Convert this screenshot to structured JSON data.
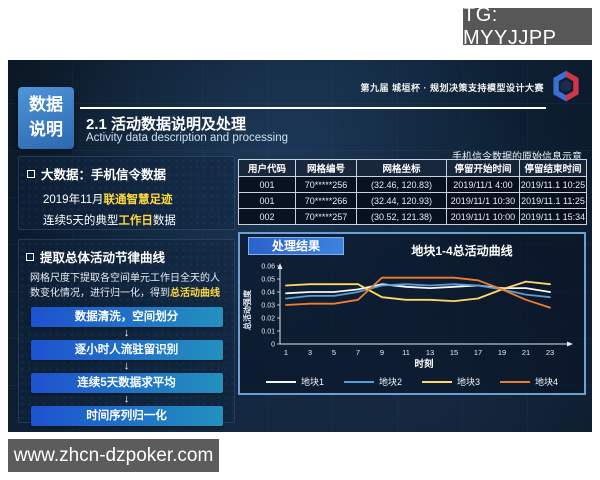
{
  "overlays": {
    "tg_badge": "TG: MYYJJPP",
    "site_badge": "www.zhcn-dzpoker.com"
  },
  "header": {
    "sidebar_label_line1": "数据",
    "sidebar_label_line2": "说明",
    "competition": "第九届 城垣杯 · 规划决策支持模型设计大赛",
    "title": "2.1 活动数据说明及处理",
    "subtitle": "Activity data description and processing",
    "table_note": "手机信令数据的原始信息示意"
  },
  "left": {
    "section1": {
      "heading": "大数据：手机信令数据",
      "line1_prefix": "2019年11月",
      "line1_highlight": "联通智慧足迹",
      "line2_prefix": "连续5天的典型",
      "line2_highlight": "工作日",
      "line2_suffix": "数据"
    },
    "section2": {
      "heading": "提取总体活动节律曲线",
      "para_prefix": "网格尺度下提取各空间单元工作日全天的人数变化情况，进行归一化，得到",
      "para_highlight": "总活动曲线",
      "steps": [
        "数据清洗，空间划分",
        "逐小时人流驻留识别",
        "连续5天数据求平均",
        "时间序列归一化"
      ],
      "arrow": "↓"
    }
  },
  "table": {
    "headers": [
      "用户代码",
      "网格编号",
      "网格坐标",
      "停留开始时间",
      "停留结束时间"
    ],
    "rows": [
      [
        "001",
        "70*****256",
        "(32.46, 120.83)",
        "2019/11/1 4:00",
        "2019/11.1 10:25"
      ],
      [
        "001",
        "70*****266",
        "(32.44, 120.93)",
        "2019/11/1 10:30",
        "2019/11.1 11:25"
      ],
      [
        "002",
        "70*****257",
        "(30.52, 121.38)",
        "2019/11/1 10:00",
        "2019/11.1 15:34"
      ]
    ]
  },
  "result": {
    "label": "处理结果"
  },
  "colors": {
    "highlight_yellow": "#ffd83d",
    "flow_box_gradient": [
      "#1d51d0",
      "#2391bd"
    ],
    "panel_border_blue": "#6d9fd6",
    "result_label_blue": "#2a62cc",
    "logo_blue": "#3b6fd4",
    "logo_red": "#d0364a"
  },
  "chart_data": {
    "type": "line",
    "title": "地块1-4总活动曲线",
    "xlabel": "时刻",
    "ylabel": "总活动强度",
    "x": [
      1,
      3,
      5,
      7,
      9,
      11,
      13,
      15,
      17,
      19,
      21,
      23
    ],
    "xlim": [
      1,
      23
    ],
    "ylim": [
      0,
      0.06
    ],
    "yticks": [
      0,
      0.01,
      0.02,
      0.03,
      0.04,
      0.05,
      0.06
    ],
    "grid": false,
    "legend_position": "bottom",
    "series": [
      {
        "name": "地块1",
        "color": "#f5f5f5",
        "values": [
          0.039,
          0.04,
          0.04,
          0.042,
          0.046,
          0.044,
          0.043,
          0.044,
          0.045,
          0.043,
          0.043,
          0.04
        ]
      },
      {
        "name": "地块2",
        "color": "#5b9bd5",
        "values": [
          0.035,
          0.037,
          0.037,
          0.04,
          0.045,
          0.046,
          0.045,
          0.046,
          0.045,
          0.042,
          0.038,
          0.036
        ]
      },
      {
        "name": "地块3",
        "color": "#ffd966",
        "values": [
          0.045,
          0.046,
          0.046,
          0.046,
          0.036,
          0.034,
          0.034,
          0.033,
          0.035,
          0.042,
          0.048,
          0.046
        ]
      },
      {
        "name": "地块4",
        "color": "#ed7d31",
        "values": [
          0.03,
          0.031,
          0.031,
          0.034,
          0.051,
          0.051,
          0.051,
          0.051,
          0.049,
          0.042,
          0.034,
          0.028
        ]
      }
    ]
  }
}
